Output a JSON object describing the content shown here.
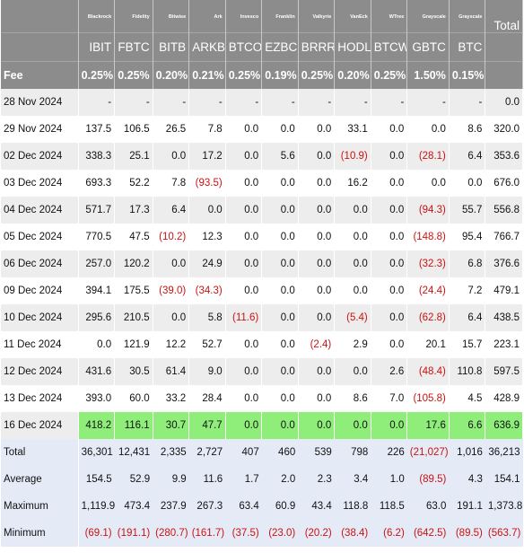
{
  "table": {
    "issuers": [
      "Blackrock",
      "Fidelity",
      "Bitwise",
      "Ark",
      "Invesco",
      "Franklin",
      "Valkyrie",
      "VanEck",
      "WTree",
      "Grayscale",
      "Grayscale"
    ],
    "tickers": [
      "IBIT",
      "FBTC",
      "BITB",
      "ARKB",
      "BTCO",
      "EZBC",
      "BRRR",
      "HODL",
      "BTCW",
      "GBTC",
      "BTC"
    ],
    "total_label": "Total",
    "fee_label": "Fee",
    "fees": [
      "0.25%",
      "0.25%",
      "0.20%",
      "0.21%",
      "0.25%",
      "0.19%",
      "0.25%",
      "0.20%",
      "0.25%",
      "1.50%",
      "0.15%"
    ],
    "rows": [
      {
        "date": "28 Nov 2024",
        "values": [
          "-",
          "-",
          "-",
          "-",
          "-",
          "-",
          "-",
          "-",
          "-",
          "-",
          "-"
        ],
        "total": "0.0"
      },
      {
        "date": "29 Nov 2024",
        "values": [
          "137.5",
          "106.5",
          "26.5",
          "7.8",
          "0.0",
          "0.0",
          "0.0",
          "33.1",
          "0.0",
          "0.0",
          "8.6"
        ],
        "total": "320.0"
      },
      {
        "date": "02 Dec 2024",
        "values": [
          "338.3",
          "25.1",
          "0.0",
          "17.2",
          "0.0",
          "5.6",
          "0.0",
          "(10.9)",
          "0.0",
          "(28.1)",
          "6.4"
        ],
        "total": "353.6"
      },
      {
        "date": "03 Dec 2024",
        "values": [
          "693.3",
          "52.2",
          "7.8",
          "(93.5)",
          "0.0",
          "0.0",
          "0.0",
          "16.2",
          "0.0",
          "0.0",
          "0.0"
        ],
        "total": "676.0"
      },
      {
        "date": "04 Dec 2024",
        "values": [
          "571.7",
          "17.3",
          "6.4",
          "0.0",
          "0.0",
          "0.0",
          "0.0",
          "0.0",
          "0.0",
          "(94.3)",
          "55.7"
        ],
        "total": "556.8"
      },
      {
        "date": "05 Dec 2024",
        "values": [
          "770.5",
          "47.5",
          "(10.2)",
          "12.3",
          "0.0",
          "0.0",
          "0.0",
          "0.0",
          "0.0",
          "(148.8)",
          "95.4"
        ],
        "total": "766.7"
      },
      {
        "date": "06 Dec 2024",
        "values": [
          "257.0",
          "120.2",
          "0.0",
          "24.9",
          "0.0",
          "0.0",
          "0.0",
          "0.0",
          "0.0",
          "(32.3)",
          "6.8"
        ],
        "total": "376.6"
      },
      {
        "date": "09 Dec 2024",
        "values": [
          "394.1",
          "175.5",
          "(39.0)",
          "(34.3)",
          "0.0",
          "0.0",
          "0.0",
          "0.0",
          "0.0",
          "(24.4)",
          "7.2"
        ],
        "total": "479.1"
      },
      {
        "date": "10 Dec 2024",
        "values": [
          "295.6",
          "210.5",
          "0.0",
          "5.8",
          "(11.6)",
          "0.0",
          "0.0",
          "(5.4)",
          "0.0",
          "(62.8)",
          "6.4"
        ],
        "total": "438.5"
      },
      {
        "date": "11 Dec 2024",
        "values": [
          "0.0",
          "121.9",
          "12.2",
          "52.7",
          "0.0",
          "0.0",
          "(2.4)",
          "2.9",
          "0.0",
          "20.1",
          "15.7"
        ],
        "total": "223.1"
      },
      {
        "date": "12 Dec 2024",
        "values": [
          "431.6",
          "30.5",
          "61.4",
          "9.0",
          "0.0",
          "0.0",
          "0.0",
          "0.0",
          "2.6",
          "(48.4)",
          "110.8"
        ],
        "total": "597.5"
      },
      {
        "date": "13 Dec 2024",
        "values": [
          "393.0",
          "60.0",
          "33.2",
          "28.4",
          "0.0",
          "0.0",
          "0.0",
          "8.6",
          "7.0",
          "(105.8)",
          "4.5"
        ],
        "total": "428.9"
      },
      {
        "date": "16 Dec 2024",
        "values": [
          "418.2",
          "116.1",
          "30.7",
          "47.7",
          "0.0",
          "0.0",
          "0.0",
          "0.0",
          "0.0",
          "17.6",
          "6.6"
        ],
        "total": "636.9"
      }
    ],
    "summary": [
      {
        "label": "Total",
        "values": [
          "36,301",
          "12,431",
          "2,335",
          "2,727",
          "407",
          "460",
          "539",
          "798",
          "226",
          "(21,027)",
          "1,016"
        ],
        "total": "36,213"
      },
      {
        "label": "Average",
        "values": [
          "154.5",
          "52.9",
          "9.9",
          "11.6",
          "1.7",
          "2.0",
          "2.3",
          "3.4",
          "1.0",
          "(89.5)",
          "4.3"
        ],
        "total": "154.1"
      },
      {
        "label": "Maximum",
        "values": [
          "1,119.9",
          "473.4",
          "237.9",
          "267.3",
          "63.4",
          "60.9",
          "43.4",
          "118.8",
          "118.5",
          "63.0",
          "191.1"
        ],
        "total": "1,373.8"
      },
      {
        "label": "Minimum",
        "values": [
          "(69.1)",
          "(191.1)",
          "(280.7)",
          "(161.7)",
          "(37.5)",
          "(23.0)",
          "(20.2)",
          "(38.4)",
          "(6.2)",
          "(642.5)",
          "(89.5)"
        ],
        "total": "(563.7)"
      }
    ],
    "colors": {
      "header_bg": "#8c8c8c",
      "alt_row_bg": "#ededed",
      "highlight_row_bg": "#8fee7a",
      "summary_bg": "#e4ebf7",
      "negative": "#cc1111"
    }
  }
}
